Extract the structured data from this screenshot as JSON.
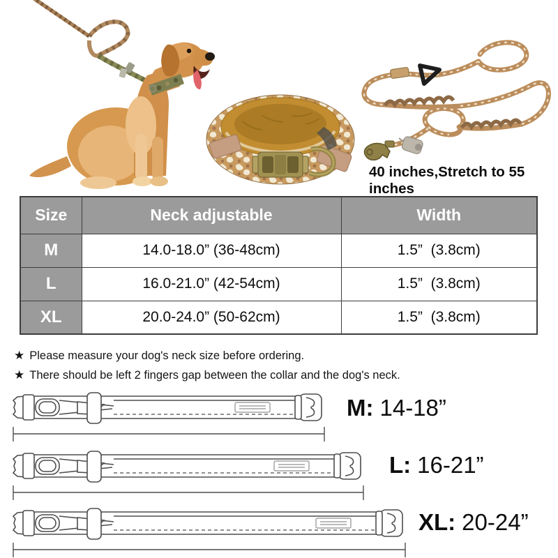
{
  "hero": {
    "leash_length_note": "40 inches,Stretch to 55 inches",
    "illustrations": {
      "dog": "golden-retriever-wearing-camo-collar-with-braided-leash",
      "collar": "tactical-camo-dog-collar-with-brass-buckle",
      "leash": "camo-bungee-dog-leash-with-snap-hook"
    }
  },
  "size_table": {
    "columns": [
      "Size",
      "Neck adjustable",
      "Width"
    ],
    "rows": [
      {
        "size": "M",
        "neck": "14.0-18.0” (36-48cm)",
        "width": "1.5”  (3.8cm)"
      },
      {
        "size": "L",
        "neck": "16.0-21.0” (42-54cm)",
        "width": "1.5”  (3.8cm)"
      },
      {
        "size": "XL",
        "neck": "20.0-24.0” (50-62cm)",
        "width": "1.5”  (3.8cm)"
      }
    ]
  },
  "notes": {
    "star": "★",
    "items": [
      "Please measure your dog's neck size before ordering.",
      "There should be left 2 fingers gap between the collar and the dog's neck."
    ]
  },
  "diagrams": [
    {
      "label": "M:",
      "range": "14-18”"
    },
    {
      "label": "L:",
      "range": "16-21”"
    },
    {
      "label": "XL:",
      "range": "20-24”"
    }
  ],
  "colors": {
    "table_header_bg": "#9b9b9b",
    "table_border": "#3d3d3d",
    "collar_pad": "#c28d31",
    "camo_tan": "#c89a5f",
    "brass": "#a29252",
    "diagram_line": "#4d4d4d"
  }
}
